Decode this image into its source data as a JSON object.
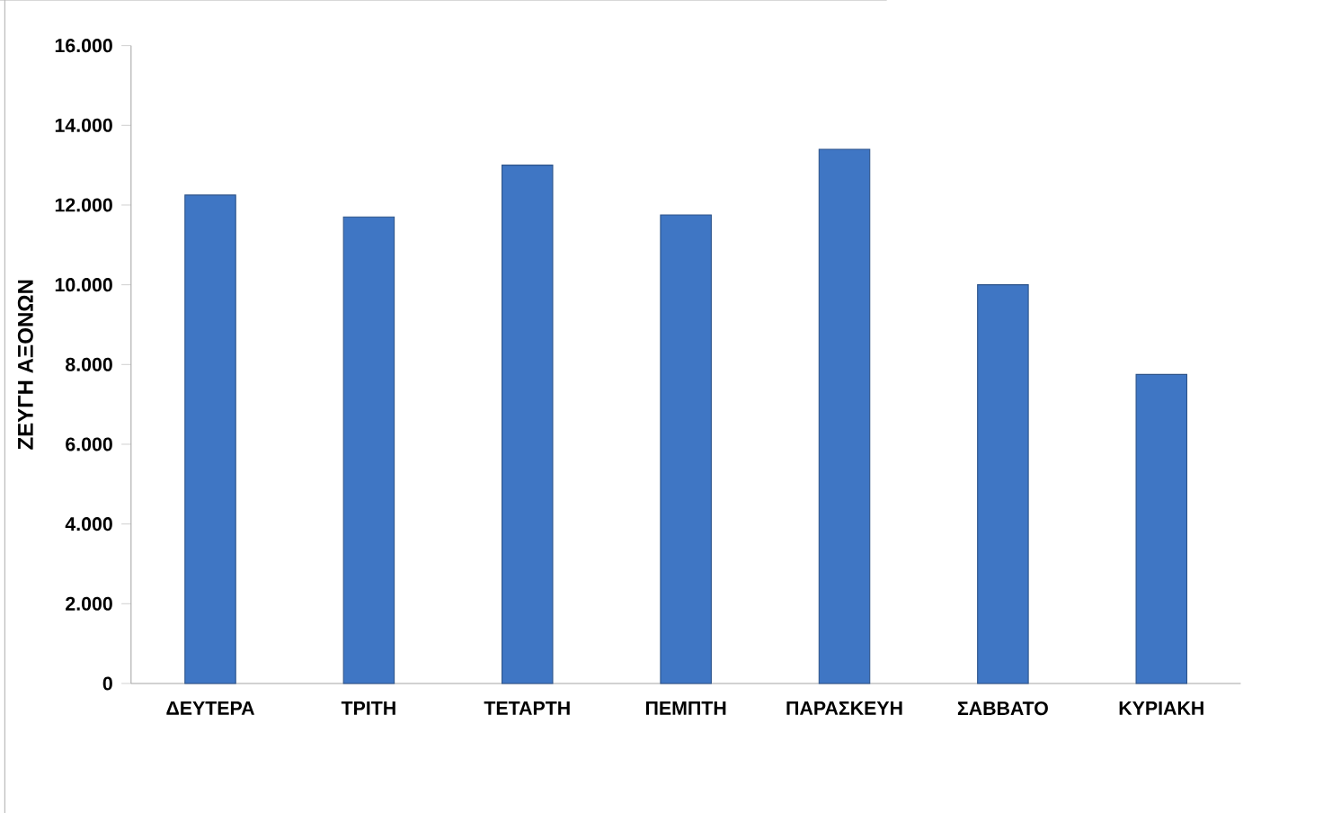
{
  "chart_data": {
    "type": "bar",
    "ylabel": "ΖΕΥΓΗ ΑΞΟΝΩΝ",
    "categories": [
      "ΔΕΥΤΕΡΑ",
      "ΤΡΙΤΗ",
      "ΤΕΤΑΡΤΗ",
      "ΠΕΜΠΤΗ",
      "ΠΑΡΑΣΚΕΥΗ",
      "ΣΑΒΒΑΤΟ",
      "ΚΥΡΙΑΚΗ"
    ],
    "values": [
      12250,
      11700,
      13000,
      11750,
      13400,
      10000,
      7750
    ],
    "color": "#3f76c4",
    "ylim": [
      0,
      16000
    ],
    "yticks": [
      0,
      {
        "value": 2000,
        "label": "2.000"
      },
      {
        "value": 4000,
        "label": "4.000"
      },
      {
        "value": 6000,
        "label": "6.000"
      },
      {
        "value": 8000,
        "label": "8.000"
      },
      {
        "value": 10000,
        "label": "10.000"
      },
      {
        "value": 12000,
        "label": "12.000"
      },
      {
        "value": 14000,
        "label": "14.000"
      },
      {
        "value": 16000,
        "label": "16.000"
      }
    ],
    "grid": false
  }
}
